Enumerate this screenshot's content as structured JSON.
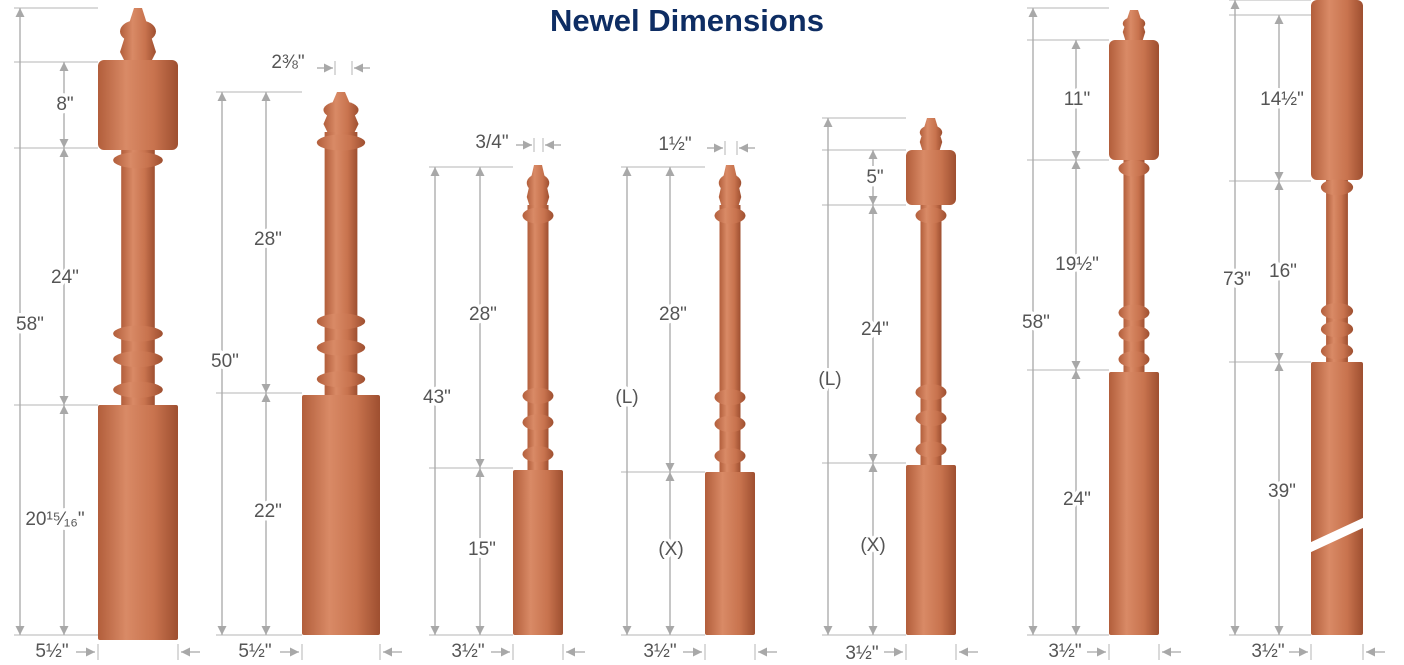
{
  "title": "Newel Dimensions",
  "newels": [
    {
      "labels": [
        "58\"",
        "8\"",
        "24\"",
        "20¹⁵⁄₁₆\"",
        "5½\""
      ]
    },
    {
      "labels": [
        "2⅜\"",
        "28\"",
        "50\"",
        "22\"",
        "5½\""
      ]
    },
    {
      "labels": [
        "3/4\"",
        "28\"",
        "43\"",
        "15\"",
        "3½\""
      ]
    },
    {
      "labels": [
        "1½\"",
        "28\"",
        "(L)",
        "(X)",
        "3½\""
      ]
    },
    {
      "labels": [
        "5\"",
        "(L)",
        "24\"",
        "(X)",
        "3½\""
      ]
    },
    {
      "labels": [
        "11\"",
        "58\"",
        "19½\"",
        "24\"",
        "3½\""
      ]
    },
    {
      "labels": [
        "14½\"",
        "73\"",
        "16\"",
        "39\"",
        "3½\""
      ]
    }
  ]
}
